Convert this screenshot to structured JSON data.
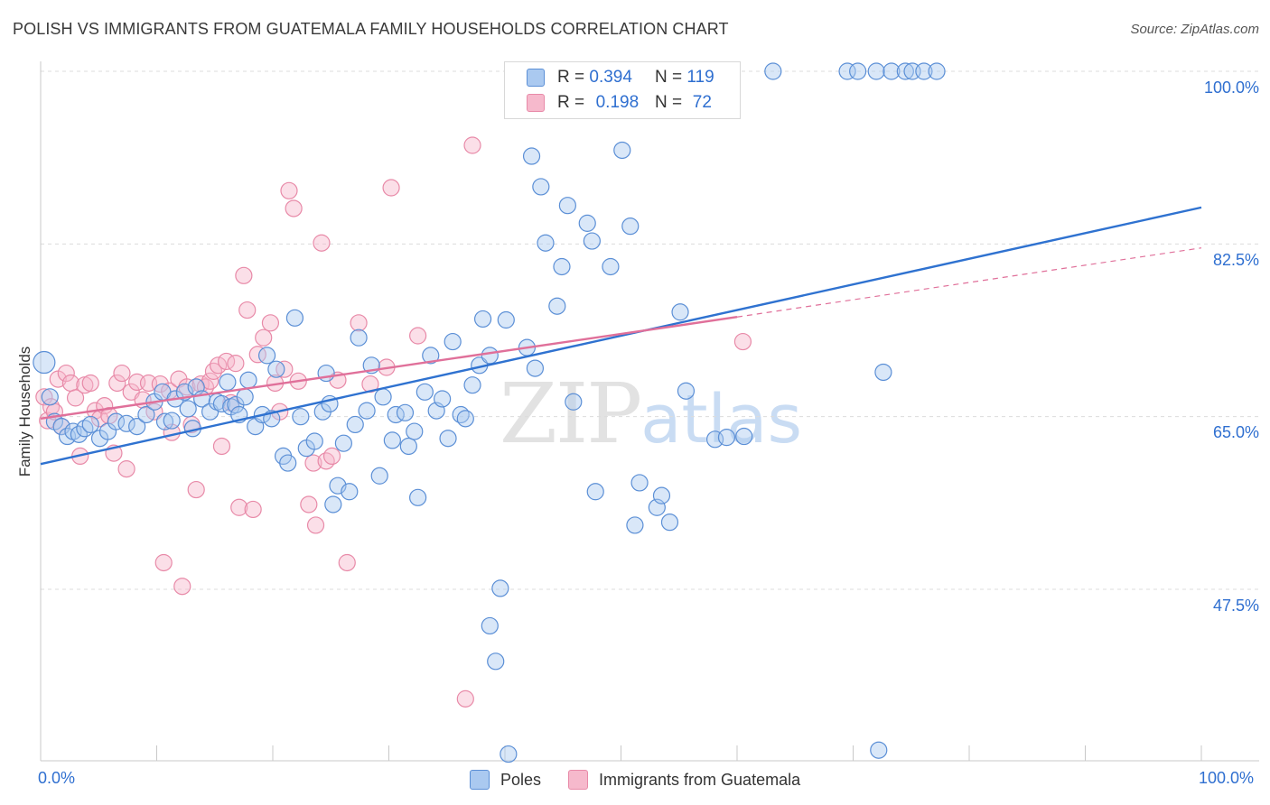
{
  "title": "POLISH VS IMMIGRANTS FROM GUATEMALA FAMILY HOUSEHOLDS CORRELATION CHART",
  "source": "Source: ZipAtlas.com",
  "watermark": {
    "zip": "ZIP",
    "atlas": "atlas"
  },
  "legend_top": {
    "poles": {
      "r_label": "R =",
      "r_value": "0.394",
      "n_label": "N =",
      "n_value": "119"
    },
    "guatemala": {
      "r_label": "R =",
      "r_value": "0.198",
      "n_label": "N =",
      "n_value": "72"
    }
  },
  "legend_bottom": {
    "poles": "Poles",
    "guatemala": "Immigrants from Guatemala"
  },
  "colors": {
    "poles_fill": "#aac9f0",
    "poles_stroke": "#5b8fd6",
    "poles_line": "#2f72d0",
    "guat_fill": "#f6b9cc",
    "guat_stroke": "#e88aa8",
    "guat_line": "#e0709a",
    "axis_text": "#2f6fd0",
    "grid": "#dcdcdc"
  },
  "chart_data": {
    "type": "scatter",
    "title": "POLISH VS IMMIGRANTS FROM GUATEMALA FAMILY HOUSEHOLDS CORRELATION CHART",
    "xlabel": "",
    "ylabel": "Family Households",
    "xlim": [
      0,
      100
    ],
    "ylim": [
      29,
      102
    ],
    "x_tick_labels": [
      "0.0%",
      "100.0%"
    ],
    "y_ticks": [
      47.5,
      65.0,
      82.5,
      100.0
    ],
    "y_tick_labels": [
      "47.5%",
      "65.0%",
      "82.5%",
      "100.0%"
    ],
    "grid": true,
    "legend_position": "top-center",
    "series": [
      {
        "name": "Poles",
        "r": 0.394,
        "n": 119,
        "trend": {
          "x": [
            0,
            100
          ],
          "y": [
            60.2,
            86.2
          ]
        },
        "points": [
          [
            0.3,
            70.5
          ],
          [
            0.8,
            67
          ],
          [
            1.2,
            64.5
          ],
          [
            1.8,
            64
          ],
          [
            2.3,
            63
          ],
          [
            2.8,
            63.5
          ],
          [
            3.3,
            63.2
          ],
          [
            3.8,
            63.8
          ],
          [
            4.3,
            64.2
          ],
          [
            5.1,
            62.8
          ],
          [
            5.8,
            63.5
          ],
          [
            6.5,
            64.5
          ],
          [
            7.4,
            64.3
          ],
          [
            8.3,
            64
          ],
          [
            9.1,
            65.2
          ],
          [
            9.8,
            66.5
          ],
          [
            10.5,
            67.5
          ],
          [
            10.7,
            64.5
          ],
          [
            11.3,
            64.6
          ],
          [
            11.6,
            66.8
          ],
          [
            12.4,
            67.5
          ],
          [
            12.7,
            65.8
          ],
          [
            13.1,
            63.8
          ],
          [
            13.4,
            68
          ],
          [
            13.9,
            66.8
          ],
          [
            14.6,
            65.5
          ],
          [
            15.2,
            66.5
          ],
          [
            15.6,
            66.3
          ],
          [
            16.1,
            68.5
          ],
          [
            16.4,
            66
          ],
          [
            16.8,
            66.2
          ],
          [
            17.1,
            65.2
          ],
          [
            17.6,
            67
          ],
          [
            17.9,
            68.7
          ],
          [
            18.5,
            64
          ],
          [
            19.1,
            65.2
          ],
          [
            19.5,
            71.2
          ],
          [
            19.9,
            64.8
          ],
          [
            20.3,
            69.8
          ],
          [
            20.9,
            61
          ],
          [
            21.3,
            60.3
          ],
          [
            21.9,
            75
          ],
          [
            22.4,
            65
          ],
          [
            22.9,
            61.8
          ],
          [
            23.6,
            62.5
          ],
          [
            24.3,
            65.5
          ],
          [
            24.6,
            69.4
          ],
          [
            24.9,
            66.3
          ],
          [
            25.2,
            56.1
          ],
          [
            25.6,
            58
          ],
          [
            26.1,
            62.3
          ],
          [
            26.6,
            57.4
          ],
          [
            27.1,
            64.2
          ],
          [
            27.4,
            73
          ],
          [
            28.1,
            65.6
          ],
          [
            28.5,
            70.2
          ],
          [
            29.2,
            59
          ],
          [
            29.5,
            67
          ],
          [
            30.3,
            62.6
          ],
          [
            30.6,
            65.2
          ],
          [
            31.4,
            65.4
          ],
          [
            31.7,
            62
          ],
          [
            32.2,
            63.5
          ],
          [
            32.5,
            56.8
          ],
          [
            33.1,
            67.5
          ],
          [
            33.6,
            71.2
          ],
          [
            34.1,
            65.6
          ],
          [
            34.6,
            66.8
          ],
          [
            35.1,
            62.8
          ],
          [
            35.5,
            72.6
          ],
          [
            36.2,
            65.2
          ],
          [
            36.6,
            64.8
          ],
          [
            37.2,
            68.2
          ],
          [
            37.8,
            70.2
          ],
          [
            38.1,
            74.9
          ],
          [
            38.7,
            71.2
          ],
          [
            39.6,
            47.6
          ],
          [
            40.1,
            74.8
          ],
          [
            39.2,
            40.2
          ],
          [
            38.7,
            43.8
          ],
          [
            40.3,
            30.8
          ],
          [
            41.9,
            72
          ],
          [
            42.6,
            69.9
          ],
          [
            42.3,
            91.4
          ],
          [
            43.1,
            88.3
          ],
          [
            43.5,
            82.6
          ],
          [
            44.5,
            76.2
          ],
          [
            44.9,
            80.2
          ],
          [
            45.4,
            86.4
          ],
          [
            45.9,
            66.5
          ],
          [
            47.1,
            84.6
          ],
          [
            47.5,
            82.8
          ],
          [
            47.8,
            57.4
          ],
          [
            49.1,
            80.2
          ],
          [
            50.1,
            92
          ],
          [
            50.8,
            84.3
          ],
          [
            51.2,
            54
          ],
          [
            51.6,
            58.3
          ],
          [
            51.8,
            100
          ],
          [
            51.4,
            100
          ],
          [
            53.1,
            55.8
          ],
          [
            53.5,
            57
          ],
          [
            54.2,
            54.3
          ],
          [
            55.1,
            75.6
          ],
          [
            55.6,
            67.6
          ],
          [
            58.1,
            62.7
          ],
          [
            59.1,
            62.9
          ],
          [
            60.6,
            63
          ],
          [
            63.1,
            100
          ],
          [
            69.5,
            100
          ],
          [
            70.4,
            100
          ],
          [
            72,
            100
          ],
          [
            72.2,
            31.2
          ],
          [
            72.6,
            69.5
          ],
          [
            73.3,
            100
          ],
          [
            74.5,
            100
          ],
          [
            75.1,
            100
          ],
          [
            76.1,
            100
          ],
          [
            77.2,
            100
          ]
        ]
      },
      {
        "name": "Immigrants from Guatemala",
        "r": 0.198,
        "n": 72,
        "trend": {
          "x": [
            0,
            60
          ],
          "y": [
            64.8,
            75.1
          ]
        },
        "trend_dashed": {
          "x": [
            60,
            100
          ],
          "y": [
            75.1,
            82.1
          ]
        },
        "points": [
          [
            0.3,
            67
          ],
          [
            0.6,
            64.6
          ],
          [
            0.9,
            66
          ],
          [
            1.2,
            65.5
          ],
          [
            1.5,
            68.8
          ],
          [
            1.8,
            64
          ],
          [
            2.2,
            69.4
          ],
          [
            2.6,
            68.4
          ],
          [
            3.0,
            66.9
          ],
          [
            3.4,
            61
          ],
          [
            3.8,
            68.2
          ],
          [
            4.3,
            68.4
          ],
          [
            4.7,
            65.6
          ],
          [
            5.1,
            64.8
          ],
          [
            5.5,
            66.1
          ],
          [
            5.9,
            65.1
          ],
          [
            6.3,
            61.3
          ],
          [
            6.6,
            68.4
          ],
          [
            7.0,
            69.4
          ],
          [
            7.4,
            59.7
          ],
          [
            7.8,
            67.5
          ],
          [
            8.3,
            68.5
          ],
          [
            8.8,
            66.7
          ],
          [
            9.3,
            68.4
          ],
          [
            9.8,
            65.5
          ],
          [
            10.3,
            68.3
          ],
          [
            10.6,
            50.2
          ],
          [
            11.1,
            67.6
          ],
          [
            11.3,
            63.4
          ],
          [
            11.9,
            68.8
          ],
          [
            12.2,
            47.8
          ],
          [
            12.6,
            68
          ],
          [
            13.0,
            64.2
          ],
          [
            13.4,
            57.6
          ],
          [
            13.8,
            68.3
          ],
          [
            14.2,
            68
          ],
          [
            14.6,
            68.6
          ],
          [
            14.9,
            69.6
          ],
          [
            15.3,
            70.2
          ],
          [
            15.6,
            62
          ],
          [
            16.0,
            70.6
          ],
          [
            16.4,
            66.4
          ],
          [
            16.8,
            70.4
          ],
          [
            17.1,
            55.8
          ],
          [
            17.5,
            79.3
          ],
          [
            17.8,
            75.8
          ],
          [
            18.3,
            55.6
          ],
          [
            18.7,
            71.3
          ],
          [
            19.2,
            73
          ],
          [
            19.8,
            74.5
          ],
          [
            20.2,
            68.4
          ],
          [
            20.6,
            65.5
          ],
          [
            21.0,
            69.8
          ],
          [
            21.4,
            87.9
          ],
          [
            21.8,
            86.1
          ],
          [
            22.2,
            68.6
          ],
          [
            23.1,
            56.1
          ],
          [
            23.5,
            60.3
          ],
          [
            24.2,
            82.6
          ],
          [
            23.7,
            54
          ],
          [
            24.6,
            60.5
          ],
          [
            25.1,
            61
          ],
          [
            25.6,
            68.7
          ],
          [
            26.4,
            50.2
          ],
          [
            27.4,
            74.5
          ],
          [
            28.4,
            68.3
          ],
          [
            29.8,
            70
          ],
          [
            30.2,
            88.2
          ],
          [
            32.5,
            73.2
          ],
          [
            37.2,
            92.5
          ],
          [
            36.6,
            36.4
          ],
          [
            60.5,
            72.6
          ]
        ]
      }
    ]
  }
}
